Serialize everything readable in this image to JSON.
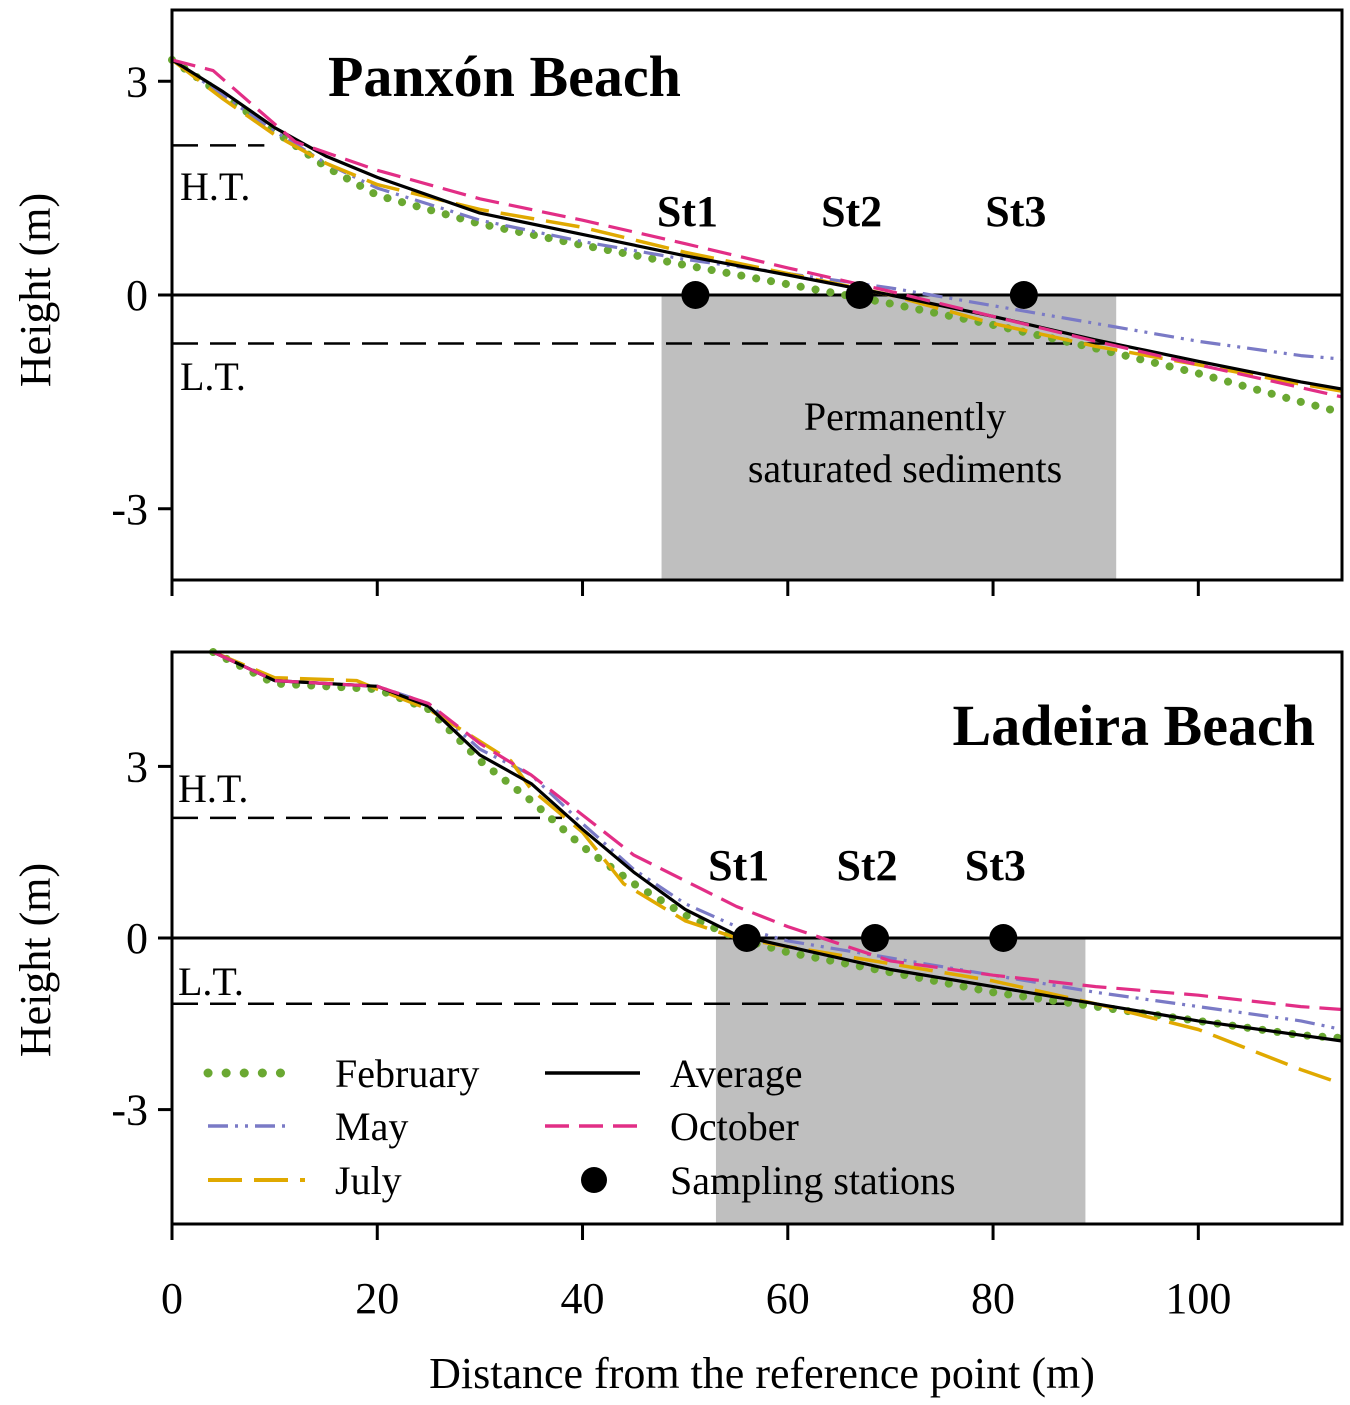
{
  "colors": {
    "february": "#6aa832",
    "may": "#7a7ac6",
    "july": "#e0a900",
    "average": "#000000",
    "october": "#e22e86",
    "station": "#000000",
    "shade": "#bfbfbf"
  },
  "chart_data": {
    "xlabel": "Distance from the reference point (m)",
    "xlim": [
      0,
      114
    ],
    "xticks": [
      0,
      20,
      40,
      60,
      80,
      100
    ],
    "xtick_labels": [
      "0",
      "20",
      "40",
      "60",
      "80",
      "100"
    ],
    "legend": [
      {
        "key": "february",
        "label": "February",
        "style": "dotted"
      },
      {
        "key": "may",
        "label": "May",
        "style": "dash-dot-dot"
      },
      {
        "key": "july",
        "label": "July",
        "style": "long-dash"
      },
      {
        "key": "average",
        "label": "Average",
        "style": "solid"
      },
      {
        "key": "october",
        "label": "October",
        "style": "dashed"
      },
      {
        "key": "station",
        "label": "Sampling stations",
        "style": "marker"
      }
    ],
    "panels": [
      {
        "title": "Panxón Beach",
        "type": "line",
        "ylabel": "Height (m)",
        "ylim": [
          -4,
          4
        ],
        "yticks": [
          3,
          0,
          -3
        ],
        "ytick_labels": [
          "3",
          "0",
          "-3"
        ],
        "high_tide": {
          "label": "H.T.",
          "y": 2.1,
          "x_end": 9
        },
        "low_tide": {
          "label": "L.T.",
          "y": -0.68,
          "x_end": 92
        },
        "saturated_region": {
          "x0": 47.7,
          "x1": 92,
          "label_line1": "Permanently",
          "label_line2": "saturated sediments"
        },
        "stations": [
          {
            "label": "St1",
            "x": 51,
            "y": 0
          },
          {
            "label": "St2",
            "x": 67,
            "y": 0
          },
          {
            "label": "St3",
            "x": 83,
            "y": 0
          }
        ],
        "series": [
          {
            "key": "february",
            "name": "February",
            "x": [
              0,
              5,
              10,
              15,
              20,
              30,
              40,
              50,
              60,
              70,
              80,
              90,
              100,
              110,
              114
            ],
            "y": [
              3.3,
              2.8,
              2.3,
              1.8,
              1.4,
              1.0,
              0.7,
              0.42,
              0.15,
              -0.12,
              -0.42,
              -0.75,
              -1.1,
              -1.5,
              -1.65
            ]
          },
          {
            "key": "may",
            "name": "May",
            "x": [
              0,
              5,
              10,
              15,
              20,
              30,
              40,
              50,
              60,
              70,
              80,
              90,
              100,
              110,
              114
            ],
            "y": [
              3.3,
              2.8,
              2.3,
              1.85,
              1.5,
              1.05,
              0.75,
              0.5,
              0.3,
              0.1,
              -0.15,
              -0.4,
              -0.65,
              -0.85,
              -0.9
            ]
          },
          {
            "key": "july",
            "name": "July",
            "x": [
              0,
              5,
              10,
              15,
              20,
              30,
              40,
              50,
              60,
              70,
              80,
              90,
              100,
              110,
              114
            ],
            "y": [
              3.3,
              2.75,
              2.25,
              1.85,
              1.55,
              1.2,
              0.95,
              0.6,
              0.3,
              0.0,
              -0.4,
              -0.72,
              -0.98,
              -1.25,
              -1.35
            ]
          },
          {
            "key": "average",
            "name": "Average",
            "x": [
              0,
              5,
              10,
              15,
              20,
              30,
              40,
              50,
              60,
              70,
              80,
              90,
              100,
              110,
              114
            ],
            "y": [
              3.3,
              2.85,
              2.35,
              1.95,
              1.65,
              1.15,
              0.85,
              0.55,
              0.28,
              0.0,
              -0.3,
              -0.63,
              -0.93,
              -1.22,
              -1.32
            ]
          },
          {
            "key": "october",
            "name": "October",
            "x": [
              0,
              4,
              8,
              12,
              20,
              30,
              40,
              50,
              60,
              70,
              80,
              90,
              100,
              110,
              114
            ],
            "y": [
              3.3,
              3.15,
              2.65,
              2.15,
              1.75,
              1.35,
              1.05,
              0.72,
              0.38,
              0.05,
              -0.3,
              -0.65,
              -0.98,
              -1.3,
              -1.43
            ]
          }
        ]
      },
      {
        "title": "Ladeira Beach",
        "type": "line",
        "ylabel": "Height (m)",
        "ylim": [
          -5,
          5
        ],
        "yticks": [
          3,
          0,
          -3
        ],
        "ytick_labels": [
          "3",
          "0",
          "-3"
        ],
        "high_tide": {
          "label": "H.T.",
          "y": 2.1,
          "x_end": 38
        },
        "low_tide": {
          "label": "L.T.",
          "y": -1.15,
          "x_end": 87
        },
        "saturated_region": {
          "x0": 53,
          "x1": 89
        },
        "stations": [
          {
            "label": "St1",
            "x": 56,
            "y": 0
          },
          {
            "label": "St2",
            "x": 68.5,
            "y": 0
          },
          {
            "label": "St3",
            "x": 81,
            "y": 0
          }
        ],
        "series": [
          {
            "key": "february",
            "name": "February",
            "x": [
              4,
              10,
              15,
              20,
              25,
              30,
              35,
              40,
              45,
              50,
              55,
              60,
              70,
              80,
              90,
              100,
              110,
              114
            ],
            "y": [
              5.0,
              4.45,
              4.4,
              4.35,
              4.0,
              3.1,
              2.4,
              1.6,
              0.95,
              0.4,
              0.0,
              -0.25,
              -0.6,
              -0.95,
              -1.2,
              -1.45,
              -1.7,
              -1.75
            ]
          },
          {
            "key": "may",
            "name": "May",
            "x": [
              4,
              10,
              15,
              20,
              25,
              30,
              35,
              40,
              45,
              50,
              55,
              60,
              70,
              80,
              90,
              100,
              110,
              114
            ],
            "y": [
              5.0,
              4.5,
              4.45,
              4.4,
              4.1,
              3.3,
              2.85,
              2.0,
              1.2,
              0.6,
              0.2,
              -0.05,
              -0.35,
              -0.65,
              -0.95,
              -1.2,
              -1.45,
              -1.6
            ]
          },
          {
            "key": "july",
            "name": "July",
            "x": [
              4,
              10,
              18,
              20,
              25,
              33,
              35,
              40,
              44,
              50,
              55,
              60,
              70,
              80,
              90,
              100,
              110,
              114
            ],
            "y": [
              5.0,
              4.55,
              4.5,
              4.35,
              4.0,
              3.1,
              2.6,
              1.85,
              0.95,
              0.3,
              0.0,
              -0.15,
              -0.45,
              -0.75,
              -1.15,
              -1.6,
              -2.3,
              -2.55
            ]
          },
          {
            "key": "average",
            "name": "Average",
            "x": [
              4,
              10,
              15,
              20,
              25,
              30,
              35,
              40,
              45,
              50,
              55,
              60,
              70,
              80,
              90,
              100,
              110,
              114
            ],
            "y": [
              5.0,
              4.5,
              4.45,
              4.4,
              4.05,
              3.2,
              2.7,
              1.9,
              1.15,
              0.5,
              0.05,
              -0.15,
              -0.55,
              -0.85,
              -1.15,
              -1.45,
              -1.7,
              -1.8
            ]
          },
          {
            "key": "october",
            "name": "October",
            "x": [
              4,
              10,
              15,
              20,
              25,
              30,
              35,
              40,
              45,
              50,
              55,
              60,
              70,
              80,
              90,
              100,
              110,
              114
            ],
            "y": [
              5.0,
              4.5,
              4.45,
              4.4,
              4.1,
              3.4,
              2.85,
              2.15,
              1.45,
              1.0,
              0.55,
              0.2,
              -0.4,
              -0.65,
              -0.85,
              -1.0,
              -1.2,
              -1.25
            ]
          }
        ]
      }
    ]
  }
}
